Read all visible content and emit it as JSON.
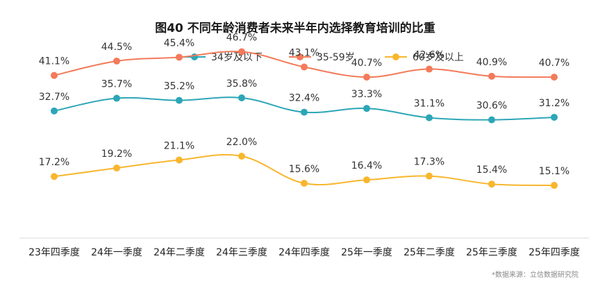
{
  "chart_data": {
    "type": "line",
    "title": "图40 不同年龄消费者未来半年内选择教育培训的比重",
    "categories": [
      "23年四季度",
      "24年一季度",
      "24年二季度",
      "24年三季度",
      "24年四季度",
      "25年一季度",
      "25年二季度",
      "25年三季度",
      "25年四季度"
    ],
    "ylim": [
      0,
      55
    ],
    "grid": false,
    "legend_position": "top",
    "series": [
      {
        "name": "34岁及以下",
        "color": "#2ca6b7",
        "values": [
          32.7,
          35.7,
          35.2,
          35.8,
          32.4,
          33.3,
          31.1,
          30.6,
          31.2
        ],
        "labels": [
          "32.7%",
          "35.7%",
          "35.2%",
          "35.8%",
          "32.4%",
          "33.3%",
          "31.1%",
          "30.6%",
          "31.2%"
        ]
      },
      {
        "name": "35-59岁",
        "color": "#f37a5a",
        "values": [
          41.1,
          44.5,
          45.4,
          46.7,
          43.1,
          40.7,
          42.6,
          40.9,
          40.7
        ],
        "labels": [
          "41.1%",
          "44.5%",
          "45.4%",
          "46.7%",
          "43.1%",
          "40.7%",
          "42.6%",
          "40.9%",
          "40.7%"
        ]
      },
      {
        "name": "60岁及以上",
        "color": "#f8b62d",
        "values": [
          17.2,
          19.2,
          21.1,
          22.0,
          15.6,
          16.4,
          17.3,
          15.4,
          15.1
        ],
        "labels": [
          "17.2%",
          "19.2%",
          "21.1%",
          "22.0%",
          "15.6%",
          "16.4%",
          "17.3%",
          "15.4%",
          "15.1%"
        ]
      }
    ],
    "source": "*数据来源：立信数据研究院"
  }
}
